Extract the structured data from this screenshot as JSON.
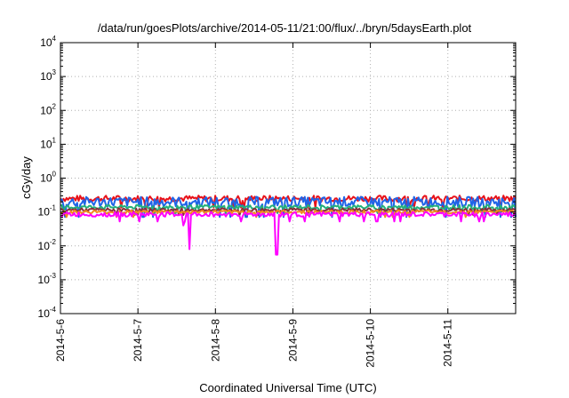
{
  "chart_data": {
    "type": "line",
    "title": "/data/run/goesPlots/archive/2014-05-11/21:00/flux/../bryn/5daysEarth.plot",
    "xlabel": "Coordinated Universal Time (UTC)",
    "ylabel": "cGy/day",
    "yscale": "log",
    "ylim": [
      0.0001,
      10000
    ],
    "xlim": [
      "2014-05-06",
      "2014-05-11T21:00"
    ],
    "x_ticks": [
      "2014-5-6",
      "2014-5-7",
      "2014-5-8",
      "2014-5-9",
      "2014-5-10",
      "2014-5-11"
    ],
    "y_ticks": [
      {
        "base": "10",
        "exp": "-4",
        "value": 0.0001
      },
      {
        "base": "10",
        "exp": "-3",
        "value": 0.001
      },
      {
        "base": "10",
        "exp": "-2",
        "value": 0.01
      },
      {
        "base": "10",
        "exp": "-1",
        "value": 0.1
      },
      {
        "base": "10",
        "exp": "0",
        "value": 1
      },
      {
        "base": "10",
        "exp": "1",
        "value": 10
      },
      {
        "base": "10",
        "exp": "2",
        "value": 100
      },
      {
        "base": "10",
        "exp": "3",
        "value": 1000
      },
      {
        "base": "10",
        "exp": "4",
        "value": 10000
      }
    ],
    "grid": true,
    "legend": "none",
    "series": [
      {
        "color": "#e8121a",
        "level": 0.25,
        "amp": 0.18
      },
      {
        "color": "#1f64e8",
        "level": 0.2,
        "amp": 0.3
      },
      {
        "color": "#22b07a",
        "level": 0.14,
        "amp": 0.12
      },
      {
        "color": "#8b2f3a",
        "level": 0.115,
        "amp": 0.1
      },
      {
        "color": "#f28c1c",
        "level": 0.1,
        "amp": 0.1
      },
      {
        "color": "#ff00ff",
        "level": 0.085,
        "amp": 0.14,
        "dips": [
          {
            "t": "2014-05-07T14:00",
            "value": 0.04
          },
          {
            "t": "2014-05-07T16:00",
            "value": 0.008
          },
          {
            "t": "2014-05-08T19:00",
            "value": 0.0055
          }
        ]
      }
    ]
  }
}
